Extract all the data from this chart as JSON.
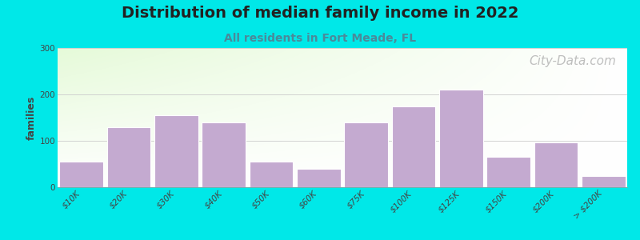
{
  "title": "Distribution of median family income in 2022",
  "subtitle": "All residents in Fort Meade, FL",
  "watermark": "City-Data.com",
  "ylabel": "families",
  "categories": [
    "$10K",
    "$20K",
    "$30K",
    "$40K",
    "$50K",
    "$60K",
    "$75K",
    "$100K",
    "$125K",
    "$150K",
    "$200K",
    "> $200K"
  ],
  "values": [
    55,
    130,
    155,
    140,
    55,
    40,
    140,
    175,
    210,
    65,
    97,
    25
  ],
  "bar_color": "#c4aad0",
  "bar_edgecolor": "#ffffff",
  "ylim": [
    0,
    300
  ],
  "yticks": [
    0,
    100,
    200,
    300
  ],
  "background_outer": "#00e8e8",
  "grid_color": "#cccccc",
  "title_fontsize": 14,
  "subtitle_fontsize": 10,
  "subtitle_color": "#4a8a9a",
  "ylabel_fontsize": 9,
  "tick_fontsize": 7.5,
  "watermark_color": "#aaaaaa",
  "watermark_fontsize": 11,
  "title_color": "#222222"
}
